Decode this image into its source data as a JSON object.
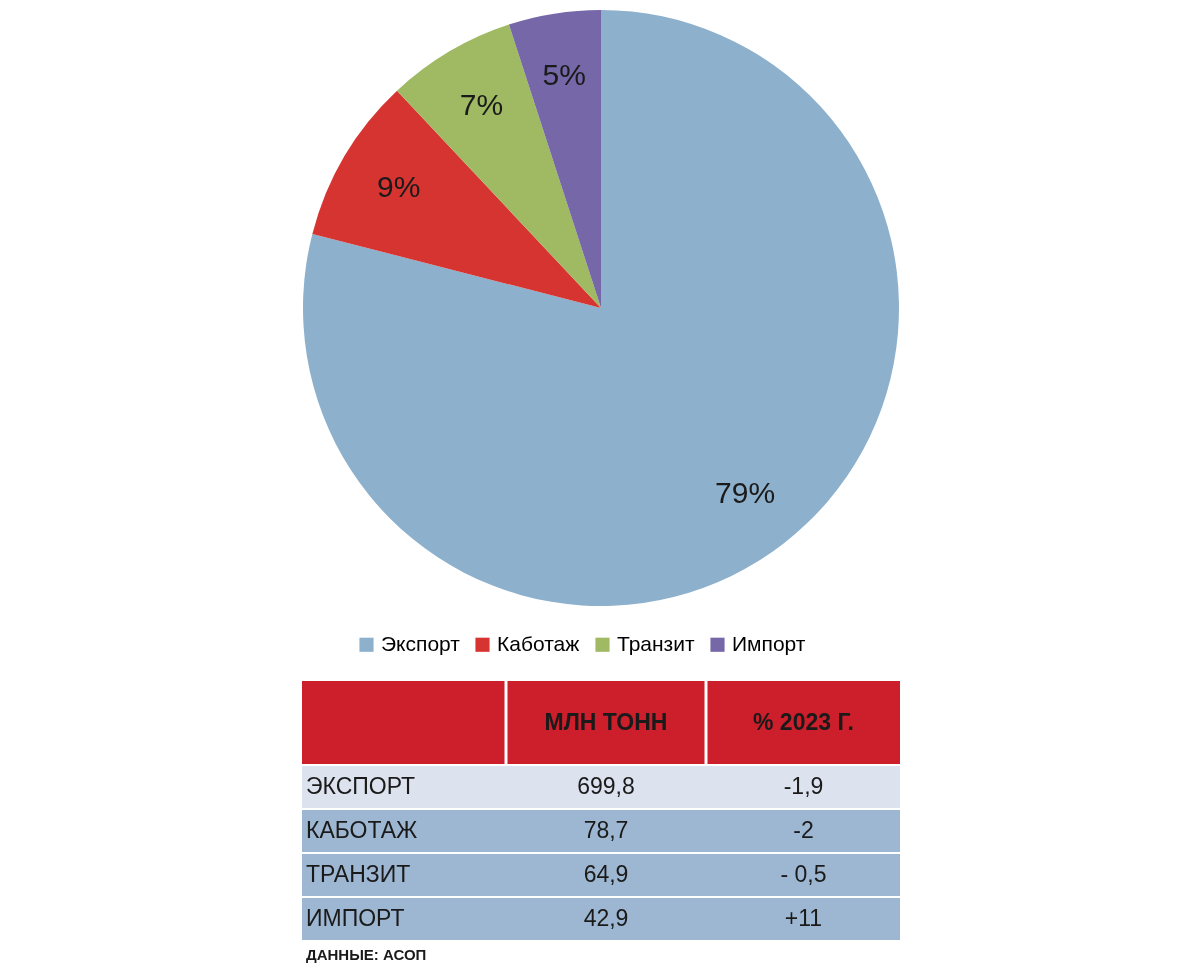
{
  "chart_data": [
    {
      "type": "pie",
      "categories": [
        "Экспорт",
        "Каботаж",
        "Транзит",
        "Импорт"
      ],
      "values": [
        79,
        9,
        7,
        5
      ],
      "value_labels": [
        "79%",
        "9%",
        "7%",
        "5%"
      ],
      "colors": [
        "#8db0cc",
        "#d63431",
        "#9fba62",
        "#7667a8"
      ],
      "legend": "bottom"
    },
    {
      "type": "other",
      "categories": [
        null,
        "МЛН ТОНН",
        "% 2023 Г."
      ],
      "y_categories": [
        "ЭКСПОРТ",
        "КАБОТАЖ",
        "ТРАНЗИТ",
        "ИМПОРТ"
      ],
      "cell_labels": [
        [
          "699,8",
          "-1,9"
        ],
        [
          "78,7",
          "-2"
        ],
        [
          "64,9",
          "- 0,5"
        ],
        [
          "42,9",
          "+11"
        ]
      ],
      "annotations": [
        "ДАННЫЕ: АСОП"
      ]
    }
  ]
}
